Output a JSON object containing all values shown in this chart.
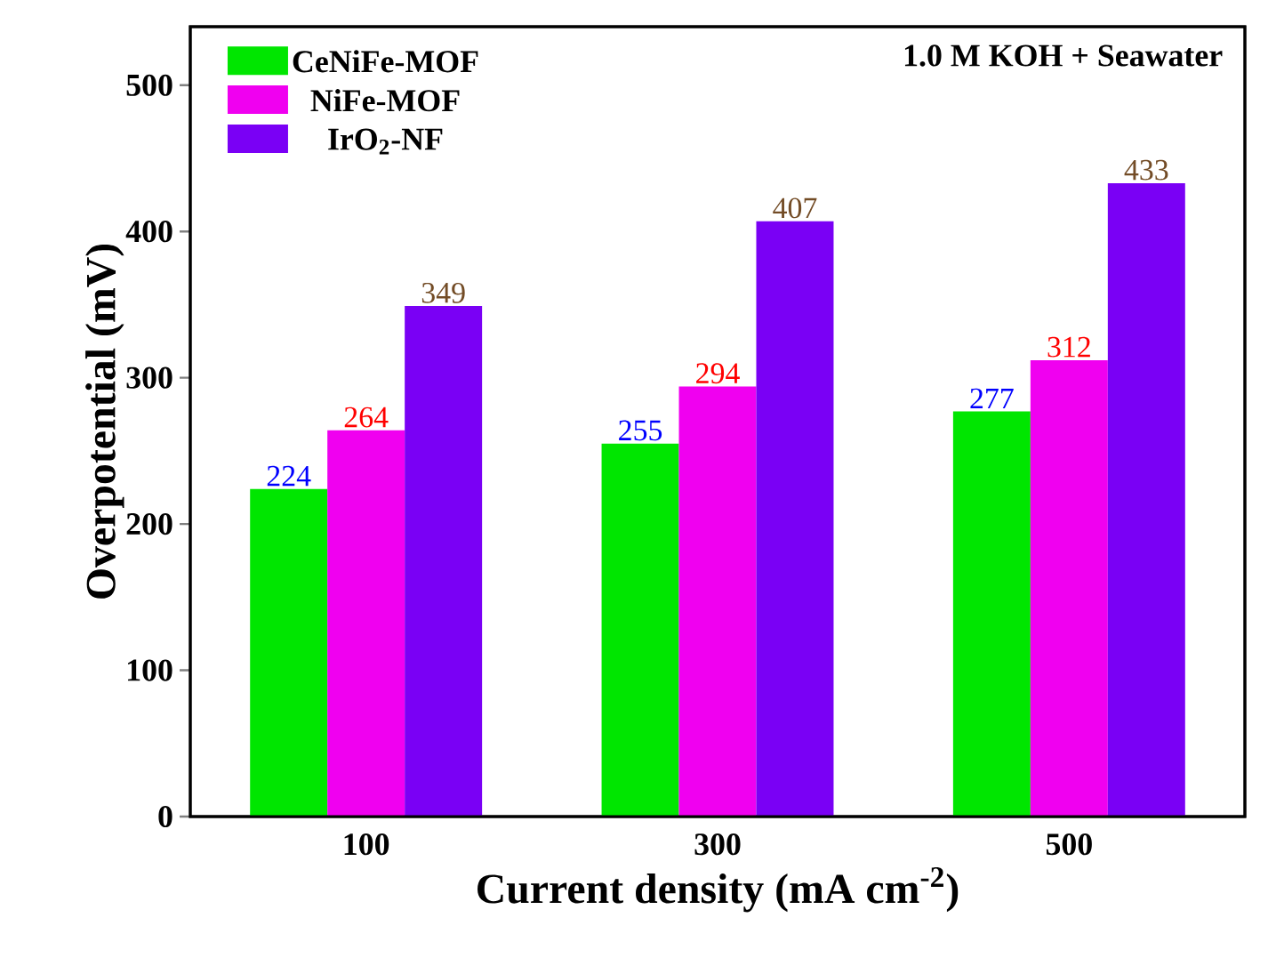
{
  "chart_data": {
    "type": "bar",
    "xlabel": "Current density (mA cm$^{-2}$)",
    "ylabel": "Overpotential (mV)",
    "categories": [
      "100",
      "300",
      "500"
    ],
    "series": [
      {
        "name": "CeNiFe-MOF",
        "color": "#00e600",
        "values": [
          224,
          255,
          277
        ]
      },
      {
        "name": "NiFe-MOF",
        "color": "#f000f0",
        "values": [
          264,
          294,
          312
        ]
      },
      {
        "name": "IrO$_{2}$-NF",
        "color": "#7a00f5",
        "values": [
          349,
          407,
          433
        ]
      }
    ],
    "ylim": [
      0,
      540
    ],
    "yticks": [
      0,
      100,
      200,
      300,
      400,
      500
    ],
    "data_labels": true,
    "legend": "top left",
    "grid": false,
    "annotations": [
      "1.0 M KOH + Seawater"
    ]
  }
}
